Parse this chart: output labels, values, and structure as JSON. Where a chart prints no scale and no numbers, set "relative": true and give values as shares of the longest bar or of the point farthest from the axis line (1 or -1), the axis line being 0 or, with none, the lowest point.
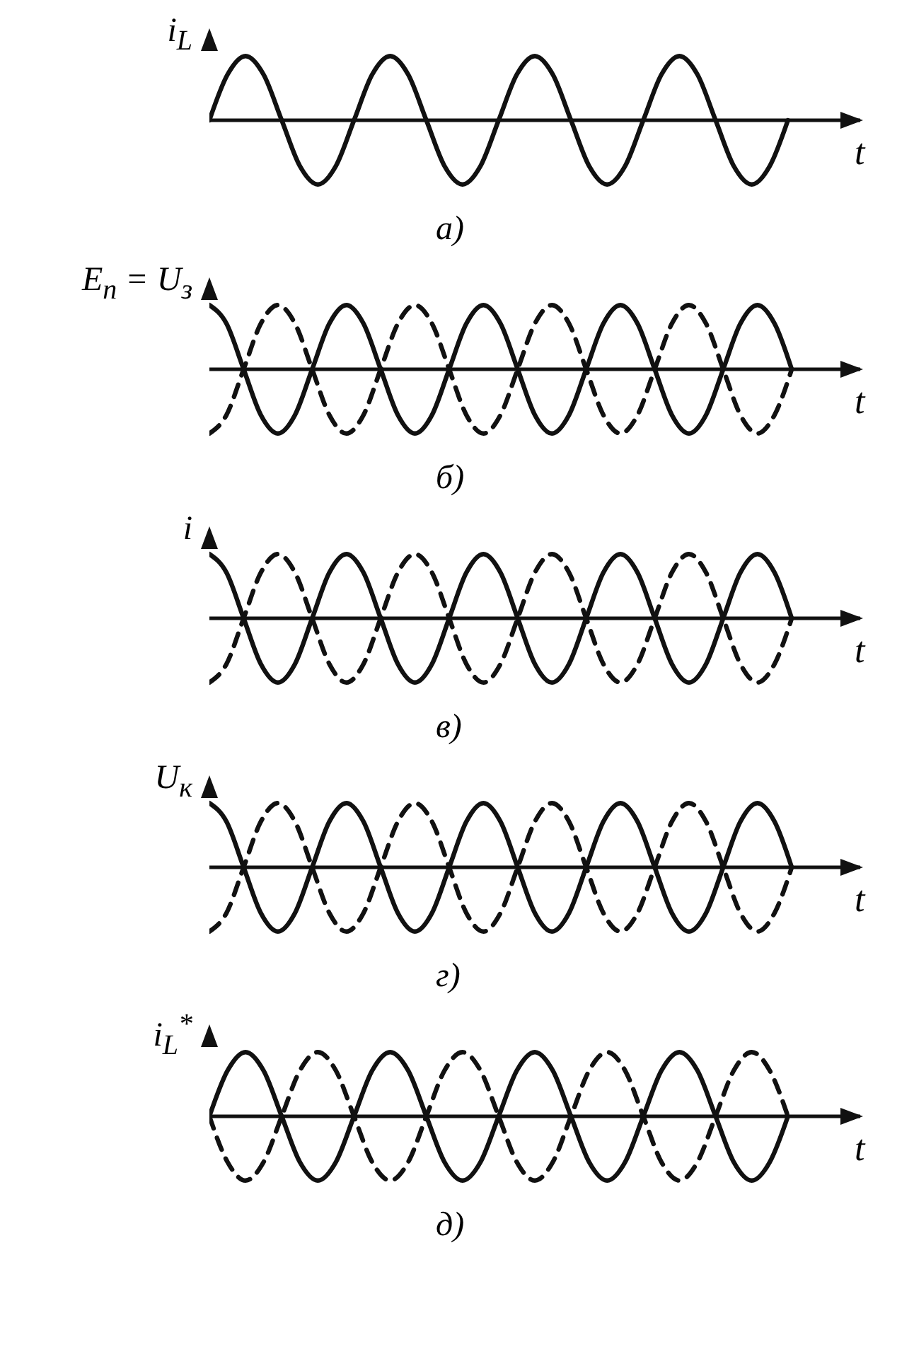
{
  "chart_data": [
    {
      "type": "line",
      "relative": true,
      "ylabel": "i$_{L}$",
      "xlabel": "t",
      "annotations": [
        "а)"
      ],
      "categories": [
        null,
        null,
        null,
        null,
        null,
        null,
        null,
        null,
        null,
        null,
        null,
        null,
        null,
        null,
        null,
        null,
        null,
        null,
        null,
        null,
        null,
        null,
        null,
        null,
        null,
        null,
        null,
        null,
        null,
        null,
        null,
        null,
        null
      ],
      "series": [
        {
          "color": "#111111",
          "line_style": "solid",
          "values": [
            0,
            0.71,
            1,
            0.71,
            0,
            -0.71,
            -1,
            -0.71,
            0,
            0.71,
            1,
            0.71,
            0,
            -0.71,
            -1,
            -0.71,
            0,
            0.71,
            1,
            0.71,
            0,
            -0.71,
            -1,
            -0.71,
            0,
            0.71,
            1,
            0.71,
            0,
            -0.71,
            -1,
            -0.71,
            0
          ]
        }
      ]
    },
    {
      "type": "line",
      "relative": true,
      "ylabel": "E$_{п}$ = U$_{з}$",
      "xlabel": "t",
      "annotations": [
        "б)"
      ],
      "categories": [
        null,
        null,
        null,
        null,
        null,
        null,
        null,
        null,
        null,
        null,
        null,
        null,
        null,
        null,
        null,
        null,
        null,
        null,
        null,
        null,
        null,
        null,
        null,
        null,
        null,
        null,
        null,
        null,
        null,
        null,
        null,
        null,
        null,
        null,
        null
      ],
      "series": [
        {
          "color": "#111111",
          "line_style": "solid",
          "values": [
            1,
            0.71,
            0,
            -0.71,
            -1,
            -0.71,
            0,
            0.71,
            1,
            0.71,
            0,
            -0.71,
            -1,
            -0.71,
            0,
            0.71,
            1,
            0.71,
            0,
            -0.71,
            -1,
            -0.71,
            0,
            0.71,
            1,
            0.71,
            0,
            -0.71,
            -1,
            -0.71,
            0,
            0.71,
            1,
            0.71,
            0
          ]
        },
        {
          "color": "#111111",
          "line_style": "dashed",
          "values": [
            -1,
            -0.71,
            0,
            0.71,
            1,
            0.71,
            0,
            -0.71,
            -1,
            -0.71,
            0,
            0.71,
            1,
            0.71,
            0,
            -0.71,
            -1,
            -0.71,
            0,
            0.71,
            1,
            0.71,
            0,
            -0.71,
            -1,
            -0.71,
            0,
            0.71,
            1,
            0.71,
            0,
            -0.71,
            -1,
            -0.71,
            0
          ]
        }
      ]
    },
    {
      "type": "line",
      "relative": true,
      "ylabel": "i",
      "xlabel": "t",
      "annotations": [
        "в)"
      ],
      "categories": [
        null,
        null,
        null,
        null,
        null,
        null,
        null,
        null,
        null,
        null,
        null,
        null,
        null,
        null,
        null,
        null,
        null,
        null,
        null,
        null,
        null,
        null,
        null,
        null,
        null,
        null,
        null,
        null,
        null,
        null,
        null,
        null,
        null,
        null,
        null
      ],
      "series": [
        {
          "color": "#111111",
          "line_style": "solid",
          "values": [
            1,
            0.71,
            0,
            -0.71,
            -1,
            -0.71,
            0,
            0.71,
            1,
            0.71,
            0,
            -0.71,
            -1,
            -0.71,
            0,
            0.71,
            1,
            0.71,
            0,
            -0.71,
            -1,
            -0.71,
            0,
            0.71,
            1,
            0.71,
            0,
            -0.71,
            -1,
            -0.71,
            0,
            0.71,
            1,
            0.71,
            0
          ]
        },
        {
          "color": "#111111",
          "line_style": "dashed",
          "values": [
            -1,
            -0.71,
            0,
            0.71,
            1,
            0.71,
            0,
            -0.71,
            -1,
            -0.71,
            0,
            0.71,
            1,
            0.71,
            0,
            -0.71,
            -1,
            -0.71,
            0,
            0.71,
            1,
            0.71,
            0,
            -0.71,
            -1,
            -0.71,
            0,
            0.71,
            1,
            0.71,
            0,
            -0.71,
            -1,
            -0.71,
            0
          ]
        }
      ]
    },
    {
      "type": "line",
      "relative": true,
      "ylabel": "U$_{к}$",
      "xlabel": "t",
      "annotations": [
        "г)"
      ],
      "categories": [
        null,
        null,
        null,
        null,
        null,
        null,
        null,
        null,
        null,
        null,
        null,
        null,
        null,
        null,
        null,
        null,
        null,
        null,
        null,
        null,
        null,
        null,
        null,
        null,
        null,
        null,
        null,
        null,
        null,
        null,
        null,
        null,
        null,
        null,
        null
      ],
      "series": [
        {
          "color": "#111111",
          "line_style": "solid",
          "values": [
            1,
            0.71,
            0,
            -0.71,
            -1,
            -0.71,
            0,
            0.71,
            1,
            0.71,
            0,
            -0.71,
            -1,
            -0.71,
            0,
            0.71,
            1,
            0.71,
            0,
            -0.71,
            -1,
            -0.71,
            0,
            0.71,
            1,
            0.71,
            0,
            -0.71,
            -1,
            -0.71,
            0,
            0.71,
            1,
            0.71,
            0
          ]
        },
        {
          "color": "#111111",
          "line_style": "dashed",
          "values": [
            -1,
            -0.71,
            0,
            0.71,
            1,
            0.71,
            0,
            -0.71,
            -1,
            -0.71,
            0,
            0.71,
            1,
            0.71,
            0,
            -0.71,
            -1,
            -0.71,
            0,
            0.71,
            1,
            0.71,
            0,
            -0.71,
            -1,
            -0.71,
            0,
            0.71,
            1,
            0.71,
            0,
            -0.71,
            -1,
            -0.71,
            0
          ]
        }
      ]
    },
    {
      "type": "line",
      "relative": true,
      "ylabel": "i$_{L}$$^{*}$",
      "xlabel": "t",
      "annotations": [
        "д)"
      ],
      "categories": [
        null,
        null,
        null,
        null,
        null,
        null,
        null,
        null,
        null,
        null,
        null,
        null,
        null,
        null,
        null,
        null,
        null,
        null,
        null,
        null,
        null,
        null,
        null,
        null,
        null,
        null,
        null,
        null,
        null,
        null,
        null,
        null,
        null
      ],
      "series": [
        {
          "color": "#111111",
          "line_style": "solid",
          "values": [
            0,
            0.71,
            1,
            0.71,
            0,
            -0.71,
            -1,
            -0.71,
            0,
            0.71,
            1,
            0.71,
            0,
            -0.71,
            -1,
            -0.71,
            0,
            0.71,
            1,
            0.71,
            0,
            -0.71,
            -1,
            -0.71,
            0,
            0.71,
            1,
            0.71,
            0,
            -0.71,
            -1,
            -0.71,
            0
          ]
        },
        {
          "color": "#111111",
          "line_style": "dashed",
          "values": [
            0,
            -0.71,
            -1,
            -0.71,
            0,
            0.71,
            1,
            0.71,
            0,
            -0.71,
            -1,
            -0.71,
            0,
            0.71,
            1,
            0.71,
            0,
            -0.71,
            -1,
            -0.71,
            0,
            0.71,
            1,
            0.71,
            0,
            -0.71,
            -1,
            -0.71,
            0,
            0.71,
            1,
            0.71,
            0
          ]
        }
      ]
    }
  ]
}
